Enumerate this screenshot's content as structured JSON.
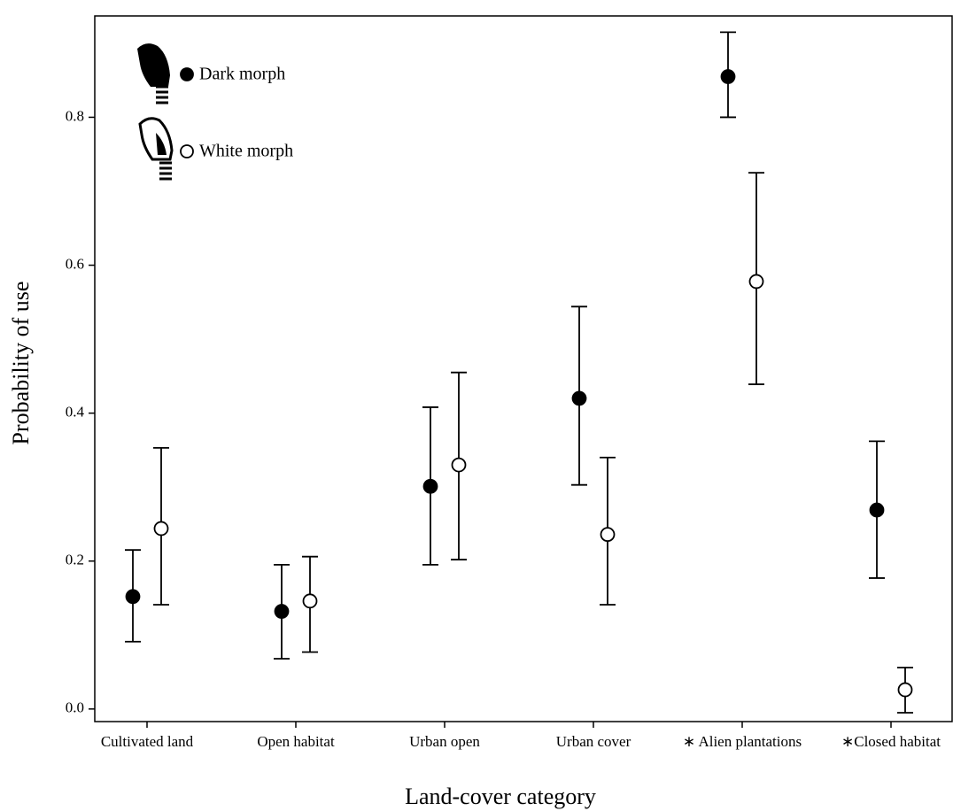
{
  "chart_data": {
    "type": "errorbar-dot",
    "x_label": "Land-cover category",
    "y_label": "Probability of use",
    "categories": [
      "Cultivated land",
      "Open habitat",
      "Urban open",
      "Urban cover",
      "∗ Alien plantations",
      "∗Closed habitat"
    ],
    "series": [
      {
        "name": "Dark morph",
        "color": "#000000",
        "values": [
          0.152,
          0.132,
          0.301,
          0.42,
          0.855,
          0.269
        ],
        "lower": [
          0.091,
          0.068,
          0.195,
          0.303,
          0.8,
          0.177
        ],
        "upper": [
          0.215,
          0.195,
          0.408,
          0.544,
          0.915,
          0.362
        ]
      },
      {
        "name": "White morph",
        "color": "#ffffff",
        "values": [
          0.244,
          0.146,
          0.33,
          0.236,
          0.578,
          0.026
        ],
        "lower": [
          0.141,
          0.077,
          0.202,
          0.141,
          0.439,
          -0.005
        ],
        "upper": [
          0.353,
          0.206,
          0.455,
          0.34,
          0.725,
          0.056
        ]
      }
    ],
    "ylim": [
      -0.017,
      0.937
    ],
    "yticks": [
      {
        "value": 0,
        "label": "0.0"
      },
      0.2,
      0.4,
      0.6,
      0.8
    ],
    "grid": false,
    "legend": "upper left"
  }
}
